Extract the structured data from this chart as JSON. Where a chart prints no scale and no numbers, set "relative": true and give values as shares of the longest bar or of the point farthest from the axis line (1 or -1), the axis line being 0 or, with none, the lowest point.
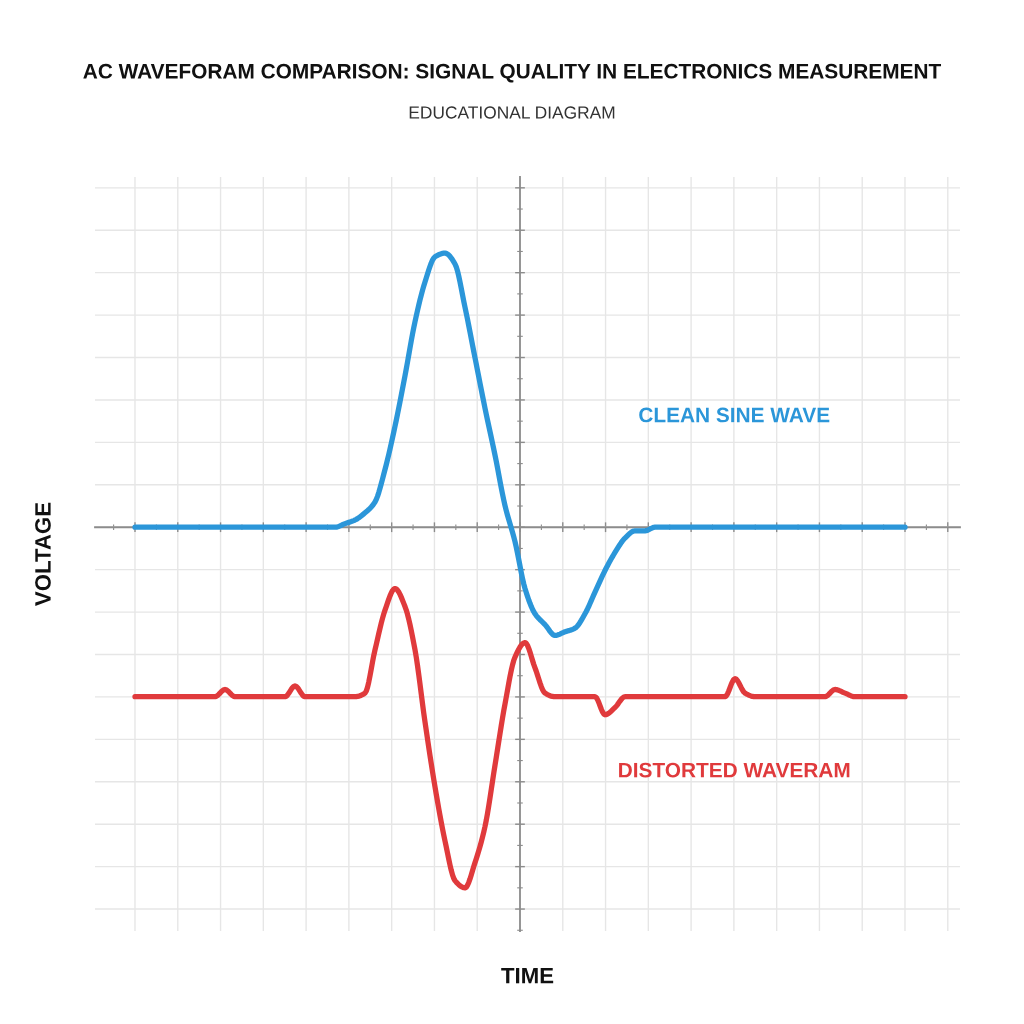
{
  "chart_data": {
    "type": "line",
    "title": "AC WAVEFORAM COMPARISON: SIGNAL QUALITY IN ELECTRONICS MEASUREMENT",
    "subtitle": "EDUCATIONAL DIAGRAM",
    "xlabel": "TIME",
    "ylabel": "VOLTAGE",
    "relative": true,
    "categories": [
      null,
      null,
      null,
      null,
      null,
      null,
      null,
      null,
      null,
      null,
      null,
      null,
      null,
      null,
      null,
      null,
      null,
      null,
      null,
      null,
      null,
      null,
      null,
      null,
      null,
      null,
      null,
      null,
      null,
      null,
      null,
      null,
      null,
      null,
      null,
      null,
      null,
      null,
      null,
      null,
      null,
      null,
      null,
      null,
      null,
      null,
      null,
      null,
      null,
      null,
      null,
      null,
      null,
      null,
      null,
      null,
      null,
      null,
      null,
      null,
      null,
      null,
      null,
      null,
      null,
      null,
      null,
      null,
      null,
      null,
      null,
      null,
      null,
      null,
      null,
      null,
      null,
      null
    ],
    "series": [
      {
        "name": "CLEAN SINE WAVE",
        "color": "#2b96d9",
        "values": [
          0,
          0,
          0,
          0,
          0,
          0,
          0,
          0,
          0,
          0,
          0,
          0,
          0,
          0,
          0,
          0,
          0,
          0,
          0,
          0,
          0,
          0.01,
          0.02,
          0.04,
          0.07,
          0.16,
          0.28,
          0.42,
          0.57,
          0.68,
          0.75,
          0.76,
          0.73,
          0.61,
          0.47,
          0.33,
          0.2,
          0.06,
          -0.04,
          -0.17,
          -0.24,
          -0.27,
          -0.3,
          -0.29,
          -0.28,
          -0.24,
          -0.18,
          -0.12,
          -0.07,
          -0.03,
          -0.01,
          -0.01,
          0,
          0,
          0,
          0,
          0,
          0,
          0,
          0,
          0,
          0,
          0,
          0,
          0,
          0,
          0,
          0,
          0,
          0,
          0,
          0,
          0,
          0,
          0,
          0,
          0,
          0
        ]
      },
      {
        "name": "DISTORTED WAVERAM",
        "color": "#e03a3c",
        "values": [
          -0.47,
          -0.47,
          -0.47,
          -0.47,
          -0.47,
          -0.47,
          -0.47,
          -0.47,
          -0.47,
          -0.45,
          -0.47,
          -0.47,
          -0.47,
          -0.47,
          -0.47,
          -0.47,
          -0.44,
          -0.47,
          -0.47,
          -0.47,
          -0.47,
          -0.47,
          -0.47,
          -0.46,
          -0.34,
          -0.23,
          -0.17,
          -0.22,
          -0.34,
          -0.54,
          -0.72,
          -0.87,
          -0.98,
          -1,
          -0.93,
          -0.83,
          -0.66,
          -0.49,
          -0.36,
          -0.32,
          -0.39,
          -0.46,
          -0.47,
          -0.47,
          -0.47,
          -0.47,
          -0.47,
          -0.52,
          -0.5,
          -0.47,
          -0.47,
          -0.47,
          -0.47,
          -0.47,
          -0.47,
          -0.47,
          -0.47,
          -0.47,
          -0.47,
          -0.47,
          -0.42,
          -0.46,
          -0.47,
          -0.47,
          -0.47,
          -0.47,
          -0.47,
          -0.47,
          -0.47,
          -0.47,
          -0.45,
          -0.46,
          -0.47,
          -0.47,
          -0.47,
          -0.47,
          -0.47,
          -0.47
        ]
      }
    ],
    "grid": true,
    "legend": false,
    "line_style": "solid"
  }
}
